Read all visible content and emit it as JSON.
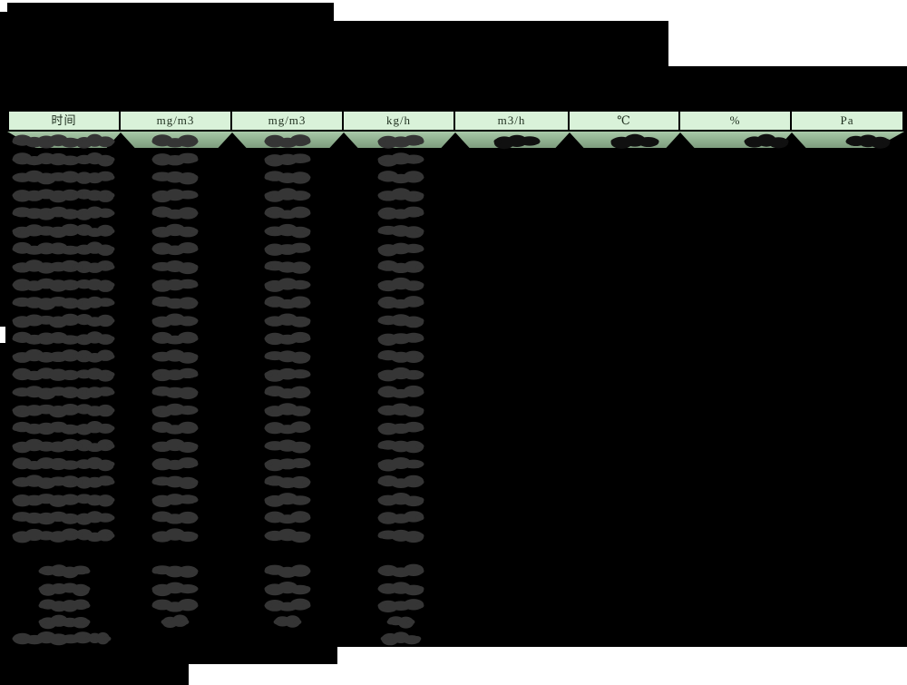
{
  "table": {
    "columns": [
      "时间",
      "mg/m3",
      "mg/m3",
      "kg/h",
      "m3/h",
      "℃",
      "%",
      "Pa"
    ],
    "redaction": {
      "data_rows": 23,
      "first_row_value_columns": [
        1,
        2,
        3,
        4,
        5,
        6,
        7,
        8
      ],
      "data_row_value_columns": [
        1,
        2,
        3,
        4
      ],
      "summary_rows": 4,
      "summary_value_columns": [
        2,
        3,
        4
      ],
      "footer_rows": 1,
      "footer_value_columns": [
        4
      ]
    }
  },
  "colors": {
    "page_background": "#ffffff",
    "redaction_block": "#000000",
    "header_fill": "#d9f2d9",
    "header_text": "#1e2e1e",
    "strip_green_top": "#a9c9a9",
    "strip_green_bottom": "#7e9c7e",
    "blob_gray": "#353535",
    "blob_dark": "#101010"
  }
}
